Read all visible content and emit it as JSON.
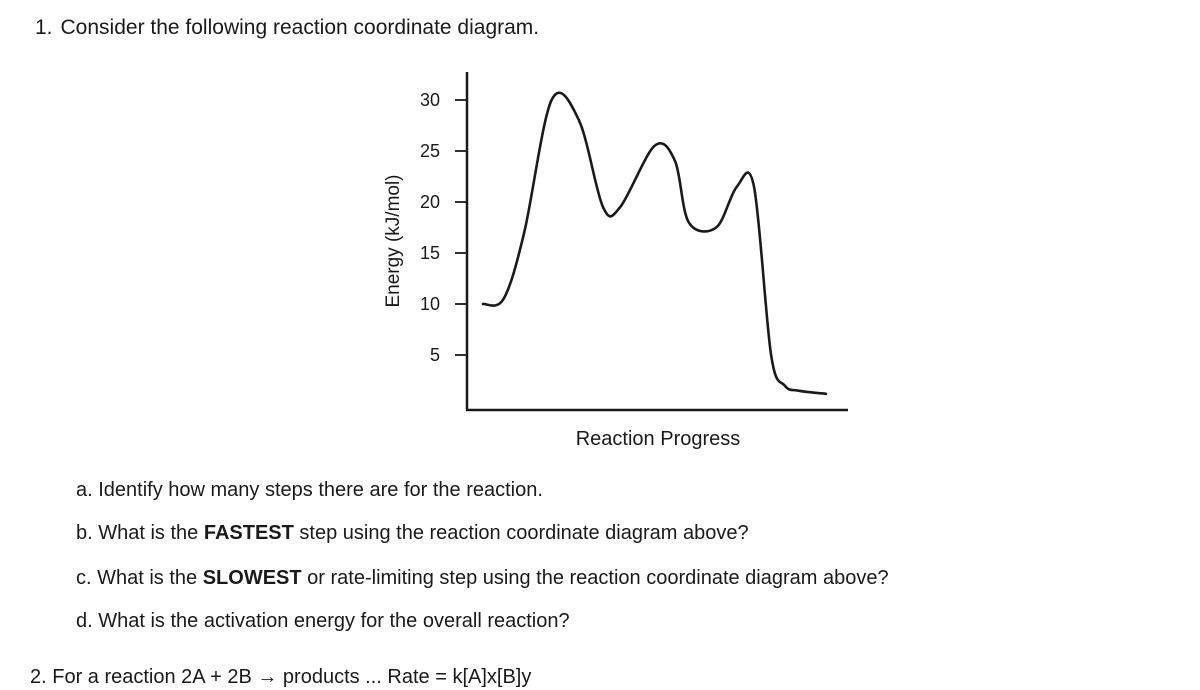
{
  "question1": {
    "number": "1.",
    "prompt": "Consider the following reaction coordinate diagram."
  },
  "chart_data": {
    "type": "line",
    "title": "",
    "xlabel": "Reaction Progress",
    "ylabel": "Energy (kJ/mol)",
    "yticks": [
      30,
      25,
      20,
      15,
      10,
      5
    ],
    "ylim": [
      0,
      32
    ],
    "grid": false,
    "series": [
      {
        "x": [
          0,
          0.06,
          0.12,
          0.2,
          0.28,
          0.35,
          0.4,
          0.5,
          0.56,
          0.6,
          0.68,
          0.74,
          0.79,
          0.84,
          0.88,
          0.92,
          1.0
        ],
        "values": [
          10,
          10.5,
          17,
          30,
          28,
          19.5,
          19.5,
          25.5,
          24,
          18,
          17.5,
          21.5,
          21.5,
          5,
          2,
          1.5,
          1.2
        ]
      }
    ]
  },
  "subquestions": {
    "a": {
      "prefix": "a. Identify how many steps there are for the reaction.",
      "bold": "",
      "suffix": ""
    },
    "b": {
      "prefix": "b. What is the ",
      "bold": "FASTEST",
      "suffix": " step using the reaction coordinate diagram above?"
    },
    "c": {
      "prefix": "c. What is the ",
      "bold": "SLOWEST",
      "suffix": " or rate-limiting step using the reaction coordinate diagram above?"
    },
    "d": {
      "prefix": "d. What is the activation energy for the overall reaction?",
      "bold": "",
      "suffix": ""
    }
  },
  "question2_cutoff": "2. For a reaction 2A + 2B → products ... Rate = k[A]x[B]y"
}
